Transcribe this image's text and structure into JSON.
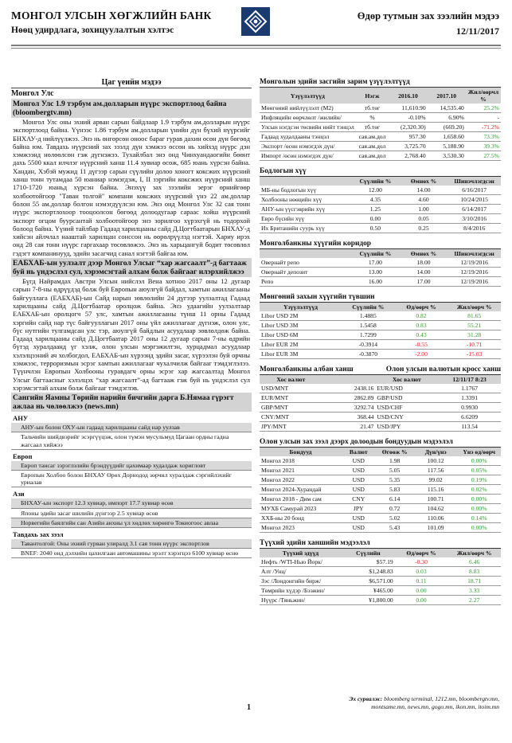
{
  "header": {
    "bank_name": "МОНГОЛ УЛСЫН ХӨГЖЛИЙН БАНК",
    "dept": "Нөөц удирдлага, зохицуулалтын хэлтэс",
    "report_name": "Өдөр тутмын зах зээлийн мэдээ",
    "date": "12/11/2017"
  },
  "left": {
    "section_title": "Цаг үеийн мэдээ",
    "sub_title": "Монгол Улс",
    "news1": {
      "title": "Монгол Улс 1.9 тэрбум ам.долларын нүүрс экспортлоод байна (bloombergtv.mn)",
      "body": "Монгол Улс оны эхний арван сарын байдлаар 1.9 тэрбум ам.долларын нүүрс экспортлоод байна. Үүнээс 1.86 тэрбум ам.долларын үнийн дүн бүхий нүүрсийг БНХАУ-д нийлүүлжээ. Энэ нь өнгөрсөн оноос бараг гурав дахин өсөн дүн бөгөөд байна юм. Тавдахь нүүрсний зах зээлд дүн хэмжээ өссөн нь хийхэд нүүрс дэн хэмжээнд нөлөөлсөн гэж дүгнэжээ. Тухайлбал энэ онд Чинхуандаогийн бөөнт дахь 5500 ккал илчлэг нүүрсний ханш 11.4 хувиар өсөж, 685 юань хүрсэн байна. Хандан, Хэбэй мужид 11 дүгээр сарын сүүлийн долоо хоногт коксжих нүүрсний ханш тонн тутамдаа 50 юаниар нэмэгдэж, I, II зэргийн коксжих нүүрсний ханш 1710-1720 юаньд хүрсэн байна. Энэхүү зах зээлийн эерэг өрнийгөөр холбоотойгоор \"Таван толгой\" компани коксжих нүүрсний үнэ 22 ам.доллар болон 55 ам.доллар болгон нэмэгдүүлсэн юм. Энэ онд Монгол Улс 32 сая тонн нүүрс экспортлохоор тооцоолсон бөгөөд долоодугаар сараас хойш нүүрсний экспорт огцом буурсантай холбоотойгоор энэ зорилгоо хүрэхгүй нь тодорхой болоод байна. Үүний тайлбар Гадаад харилцааны сайд Д.Цогтбаатарын БНХАУ-д хийсэн айлчлал нааштай харилцан сонссон нь өөрөлрүүлэд нэгтэй. Хариу ирэх онд 28 сая тонн нүүрс гаргахаар төсөвлөжээ. Энэ нь харьцангуй бодит төсөвлөл гэдэгт компанинууд, эдийн засагчид санал нэгтэй байгаа юм."
    },
    "news2": {
      "title": "ЕАБХАБ-ын уулзалт дээр Монгол Улсыг “хар жагсаалт”-д багтааж буй нь үндэслэл сул, хэрэмсэгтай алхам болж байгааг илэрхийлжээ",
      "body": "Бүгд Найрамдах Австри Улсын нийслэл Вена хотноо 2017 оны 12 дугаар сарын 7-8-ны өдрүүдэд болж буй Европын аюулгүй байдал, хамтын ажиллагааны байгууллага (ЕАБХАБ)-ын Сайд нарын зөвлөлийн 24 дүгээр уулзалтад Гадаад харилцааны сайд Д.Цогтбаатар оролцож байна. Энэ удаагийн уулзалтаар ЕАБХАБ-ын оролцогч 57 улс, хамтын ажиллагааны түнш 11 орны Гадаад хэргийн сайд нар түс байгууллагын 2017 оны үйл ажиллагааг дүгнэж, олон улс, бүс нутгийн тулгамдсан улс тэр, аюулгүй байдлын асуудлаар зөвлөлдөж байна. Гадаад харилцааны сайд Д.Цогтбаатар 2017 оны 12 дугаар сарын 7-ны өдрийн бүтэд хуралдаанд үг хэлж, олон улсын мэргэжилтэн, хурцадмал асуудлаар хэлэлцээний ач холбогдол, ЕАБХАБ-ын хүрээнд эдийн засаг, хүрээлэн буй орчны хэмжээс, терроризмын эсрэг хамтын ажиллагааг чухалчилж байгааг тэмдэглэлээ. Түүнчлэн Европын Холбооны гуравдагч орны эсрэг хар жагсаалтад Монгол Улсыг багтаасныг хэлэлцэх “хар жагсаалт”-ад багтааж гэж буй нь үндэслэл сул хэрэмсэгтай алхам болж байгааг тэмдэглэв."
    },
    "news3_title": "Сангийн Яамны Төрийн нарийн бичгийн дарга Б.Нямаа гүрэгт ажлаа нь чөлөөлжээ (news.mn)",
    "regions": [
      {
        "name": "АНУ",
        "items": [
          "АНУ-ын болон ОХУ-ын гадаад харилцааны сайд нар уулзав",
          "Тальчийн шийдвэрийг эсэргүүцэж, олон түмэн мусульмуд Цагаан ордны гадна жагсаал хийжээ"
        ]
      },
      {
        "name": "Европ",
        "items": [
          "Европ тансаг зэрэглэлийн брэндүүдийг цахимаар худалдаж хоригловт",
          "Европын Холбоо болон БНХАУ Өрөх Дорнодод зөрчил хуралдаж сэргийлэхийг уриалав"
        ]
      },
      {
        "name": "Ази",
        "items": [
          "БНХАУ-ын экспорт 12.3 хувиар, импорт 17.7 хувиар өсөв",
          "Японы эдийн засаг шилийн дүнгээр 2.5 хувиар өсөв",
          "Норвегийн баялгийн сан Азийн анхны үл хөдлөх хөрөнгө Токиогоос авлаа"
        ]
      },
      {
        "name": "Тавдахь зах зээл",
        "items": [
          "Тавантолгой: Оны эхний гурван улиралд 3.1 сая тонн нүүрс экспортлов",
          "BNEF: 2040 онд дэлхийн цахилгаан автомашины эрэлт хэрэгцээ 6100 хувиар өснө"
        ]
      }
    ]
  },
  "macro": {
    "title": "Монголын эдийн засгийн зарим үзүүлэлтүүд",
    "headers": [
      "Үзүүлэлтүүд",
      "Нэгж",
      "2016.10",
      "2017.10",
      "Жил/өөрчл %"
    ],
    "rows": [
      [
        "Мөнгөний нийлүүлэлт (M2)",
        "тб.төг",
        "11,610.90",
        "14,535.40",
        "25.2%",
        "g"
      ],
      [
        "Инфляцийн өөрчлөлт /жилийн/",
        "%",
        "-0.10%",
        "6.90%",
        "-",
        ""
      ],
      [
        "Улсын нэгдсэн төсвийн нийт тэнцэл",
        "тб.төг",
        "(2,320.30)",
        "(669.20)",
        "-71.2%",
        "r"
      ],
      [
        "Гадаад худалдааны тэнцэл",
        "сая.ам.дол",
        "957.30",
        "1,658.60",
        "73.3%",
        "g"
      ],
      [
        "Экспорт /өсөн нэмэгдэх дүн/",
        "сая.ам.дол",
        "3,725.70",
        "5,188.90",
        "39.3%",
        "g"
      ],
      [
        "Импорт /өсөн нэмэгдэх дүн/",
        "сая.ам.дол",
        "2,768.40",
        "3,530.30",
        "27.5%",
        "g"
      ]
    ]
  },
  "policy": {
    "title": "Бодлогын хүү",
    "headers": [
      "",
      "Сүүлийн %",
      "Өмнөх %",
      "Шинэчлэгдсэн"
    ],
    "rows": [
      [
        "МБ-ны бодлогын хүү",
        "12.00",
        "14.00",
        "6/16/2017"
      ],
      [
        "Холбооны нөөцийн хүү",
        "4.35",
        "4.60",
        "10/24/2015"
      ],
      [
        "АНУ-ын үүсгэврийн хүү",
        "1.25",
        "1.00",
        "6/14/2017"
      ],
      [
        "Евро бүсийн хүү",
        "0.00",
        "0.05",
        "3/10/2016"
      ],
      [
        "Их Британийн суурь хүү",
        "0.50",
        "0.25",
        "8/4/2016"
      ]
    ]
  },
  "corridor": {
    "title": "Монголбанкны хүүгийн коридор",
    "headers": [
      "",
      "Сүүлийн %",
      "Өмнөх %",
      "Шинэчлэгдсэн"
    ],
    "rows": [
      [
        "Овернайт репо",
        "17.00",
        "18.00",
        "12/19/2016"
      ],
      [
        "Овернайт депозит",
        "13.00",
        "14.00",
        "12/19/2016"
      ],
      [
        "Репо",
        "16.00",
        "17.00",
        "12/19/2016"
      ]
    ]
  },
  "libor": {
    "title": "Мөнгөний захын хүүгийн түвшин",
    "headers": [
      "Үзүүлэлтүүд",
      "Сүүлийн %",
      "Өд/өөрч %",
      "Жил/өөрч %"
    ],
    "rows": [
      [
        "Libor USD 2M",
        "1.4885",
        "0.82",
        "81.65",
        "g",
        "g"
      ],
      [
        "Libor USD 3M",
        "1.5458",
        "0.83",
        "55.21",
        "g",
        "g"
      ],
      [
        "Libor USD 6M",
        "1.7299",
        "0.43",
        "31.28",
        "g",
        "g"
      ],
      [
        "Libor EUR 2M",
        "-0.3914",
        "-0.55",
        "-10.71",
        "r",
        "r"
      ],
      [
        "Libor EUR 3M",
        "-0.3870",
        "-2.00",
        "-15.03",
        "r",
        "r"
      ]
    ]
  },
  "fx": {
    "title_left": "Монголбанкны албан ханш",
    "title_right": "Олон улсын валютын кросс ханш",
    "headers": [
      "Хос валют",
      "",
      "Хос валют",
      "12/11/17 8:23"
    ],
    "rows": [
      [
        "USD/MNT",
        "2438.16",
        "EUR/USD",
        "1.1767"
      ],
      [
        "EUR/MNT",
        "2862.89",
        "GBP/USD",
        "1.3391"
      ],
      [
        "GBP/MNT",
        "3292.74",
        "USD/CHF",
        "0.9930"
      ],
      [
        "CNY/MNT",
        "368.44",
        "USD/CNY",
        "6.6209"
      ],
      [
        "JPY/MNT",
        "21.47",
        "USD/JPY",
        "113.54"
      ]
    ]
  },
  "bonds": {
    "title": "Олон улсын зах зээл дээрх долоодын бондуудын мэдээлэл",
    "headers": [
      "Бондууд",
      "Валют",
      "Өгөөж %",
      "Дүн/үнэ",
      "Үнэ өд/өөрч"
    ],
    "rows": [
      [
        "Монгол 2018",
        "USD",
        "1.98",
        "100.12",
        "0.00%"
      ],
      [
        "Монгол 2021",
        "USD",
        "5.05",
        "117.56",
        "0.05%"
      ],
      [
        "Монгол 2022",
        "USD",
        "5.35",
        "99.02",
        "0.19%"
      ],
      [
        "Монгол 2024-Хурандай",
        "USD",
        "5.83",
        "115.16",
        "0.02%"
      ],
      [
        "Монгол 2018 - Дим сам",
        "CNY",
        "6.14",
        "100.71",
        "0.00%"
      ],
      [
        "МУХБ Самурай 2023",
        "JPY",
        "0.72",
        "104.62",
        "0.00%"
      ],
      [
        "ХХБ-ны 20 бонд",
        "USD",
        "5.02",
        "110.06",
        "0.14%"
      ],
      [
        "Монгол 2023",
        "USD",
        "5.43",
        "101.09",
        "0.00%"
      ]
    ]
  },
  "commod": {
    "title": "Түүхий эдийн ханшийн мэдээлэл",
    "headers": [
      "Түүхий эдүүд",
      "Сүүлийн",
      "Өд/өөрч %",
      "Жил/өөрч %"
    ],
    "rows": [
      [
        "Нефть /WTI-Нью Йорк/",
        "$57.19",
        "-0.30",
        "6.46",
        "r",
        "g"
      ],
      [
        "Алт /Унц/",
        "$1,248.83",
        "0.03",
        "8.83",
        "g",
        "g"
      ],
      [
        "Зэс /Лондонгийн бирж/",
        "$6,571.00",
        "0.11",
        "18.71",
        "g",
        "g"
      ],
      [
        "Төмрийн хүдэр /Бээжин/",
        "¥465.00",
        "0.00",
        "3.33",
        "g",
        "g"
      ],
      [
        "Нүүрс /Тяньжин/",
        "¥1,800.00",
        "0.00",
        "2.27",
        "g",
        "g"
      ]
    ]
  },
  "footer": {
    "sources_label": "Эх сурвалж:",
    "sources_line1": "bloomberg terminal, 1212.mn, bloombergtv.mn,",
    "sources_line2": "montsame.mn, news.mn, gogo.mn, ikon.mn, itoim.mn",
    "page": "1"
  },
  "colors": {
    "green": "#2d9d2d",
    "red": "#dd2222",
    "shade": "#d3d3d3",
    "logo": "#1b3a70"
  },
  "icons": {
    "logo": "bank-emblem-icon"
  }
}
